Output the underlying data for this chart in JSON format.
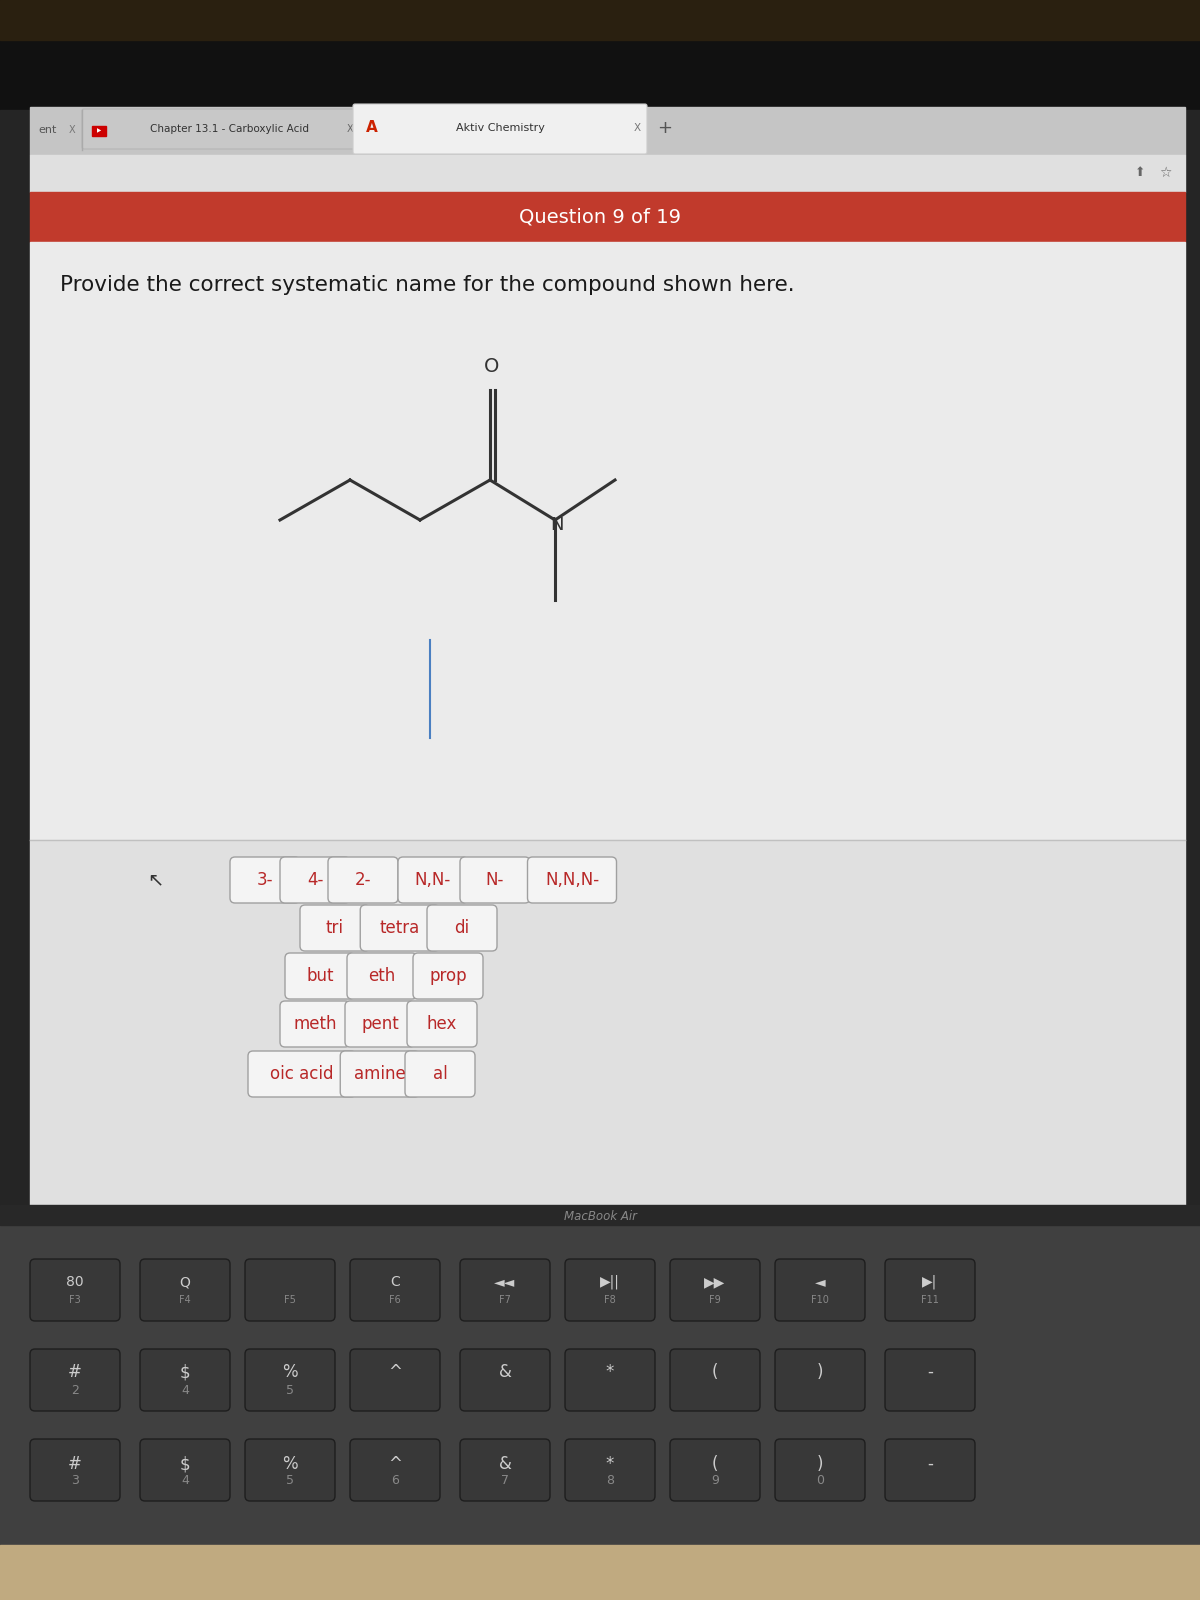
{
  "bg_dark": "#1c1c1c",
  "bg_browser": "#d8d8d8",
  "bg_tab_inactive": "#c8c8c8",
  "bg_tab_active": "#f0f0f0",
  "bg_red_bar": "#c13a2c",
  "bg_content": "#ebebeb",
  "bg_content2": "#e5e5e5",
  "bg_keyboard": "#404040",
  "bg_key": "#383838",
  "bg_deck": "#c0aa80",
  "tab_text_1": "ent",
  "tab_text_2": "Chapter 13.1 - Carboxylic Acid",
  "tab_text_3": "Aktiv Chemistry",
  "question_text": "Question 9 of 19",
  "prompt_text": "Provide the correct systematic name for the compound shown here.",
  "button_rows": [
    [
      "3-",
      "4-",
      "2-",
      "N,N-",
      "N-",
      "N,N,N-"
    ],
    [
      "tri",
      "tetra",
      "di"
    ],
    [
      "but",
      "eth",
      "prop"
    ],
    [
      "meth",
      "pent",
      "hex"
    ],
    [
      "oic acid",
      "amine",
      "al"
    ]
  ],
  "button_text_color": "#b82828",
  "button_border_color": "#a0a0a0",
  "button_bg": "#f4f4f4",
  "macbook_text": "MacBook Air",
  "line_color": "#4a7fc1",
  "molecule_color": "#333333",
  "key_text_color": "#cccccc",
  "key_subtext_color": "#888888"
}
